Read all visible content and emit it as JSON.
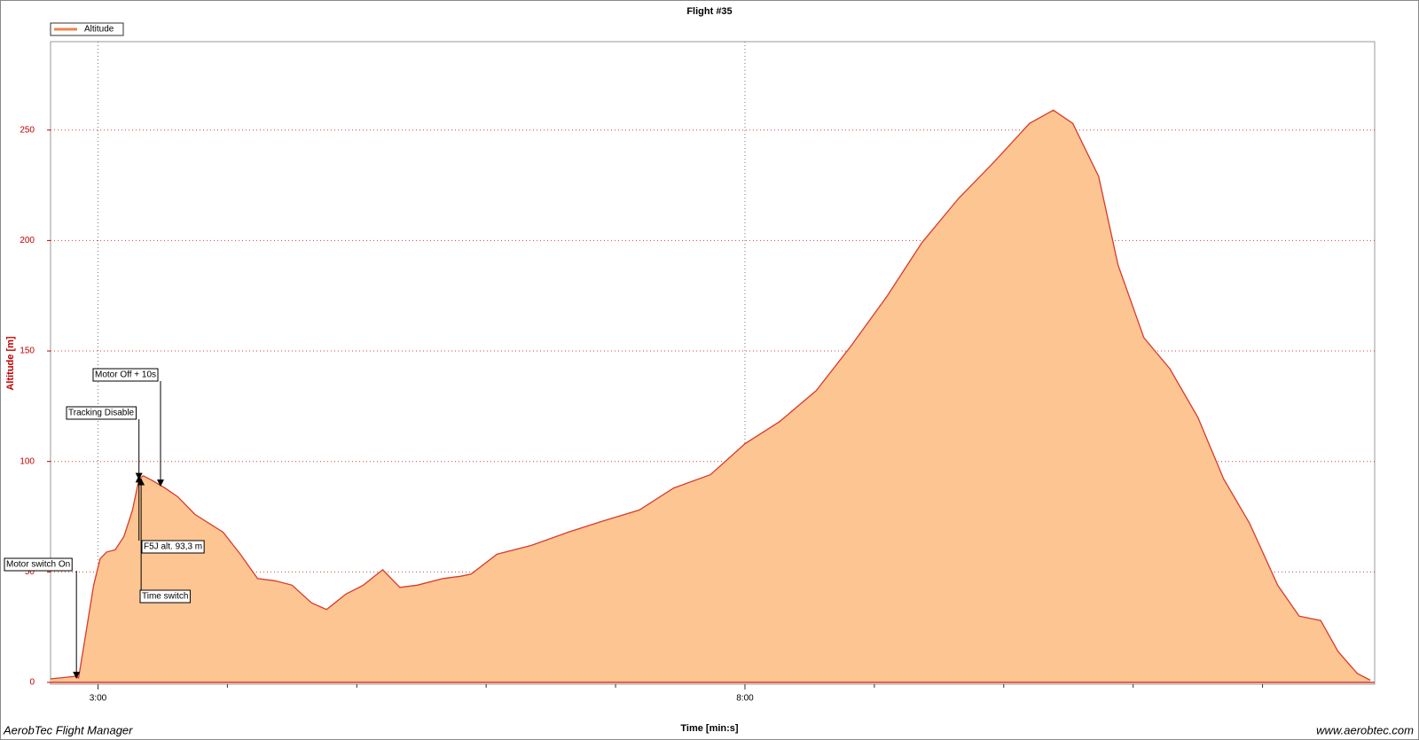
{
  "chart_data": {
    "type": "area",
    "title": "Flight #35",
    "x_label": "Time [min:s]",
    "y_label": "Altitude [m]",
    "footer": {
      "left": "AerobTec Flight Manager",
      "right": "www.aerobtec.com"
    },
    "xlim": [
      158,
      772
    ],
    "ylim": [
      0,
      290
    ],
    "xticks": [
      {
        "value": 180,
        "label": "3:00"
      },
      {
        "value": 480,
        "label": "8:00"
      }
    ],
    "xminorticks": [
      240,
      300,
      360,
      420,
      540,
      600,
      660,
      720
    ],
    "yticks": [
      0,
      50,
      100,
      150,
      200,
      250
    ],
    "grid": true,
    "legend": "top-left",
    "x": [
      158,
      170,
      171,
      174,
      178,
      181,
      184,
      188,
      192,
      196,
      199,
      201,
      205,
      211,
      217,
      225,
      238,
      246,
      254,
      262,
      270,
      279,
      286,
      295,
      303,
      312,
      320,
      328,
      340,
      348,
      353,
      365,
      381,
      398,
      414,
      431,
      447,
      464,
      480,
      496,
      513,
      529,
      546,
      562,
      579,
      595,
      612,
      623,
      632,
      644,
      653,
      665,
      677,
      690,
      702,
      714,
      727,
      737,
      747,
      755,
      764,
      770
    ],
    "series": [
      {
        "name": "Altitude",
        "color": "#d93a2b",
        "fill": "#fdc591",
        "values": [
          1.6,
          2.8,
          2,
          20,
          44,
          56,
          59,
          60,
          66,
          78,
          92,
          93.5,
          91.5,
          88,
          84,
          76,
          68,
          58,
          47,
          46,
          44,
          36,
          33,
          40,
          44,
          51,
          43,
          44,
          47,
          48,
          49,
          58,
          62,
          68,
          73,
          78,
          88,
          94,
          108,
          118,
          132,
          152,
          175,
          199,
          219,
          235,
          253,
          259,
          253,
          229,
          189,
          156,
          142,
          120,
          92,
          72,
          44,
          30,
          28,
          14,
          4,
          1
        ]
      }
    ],
    "annotations": [
      {
        "text": "Motor switch On",
        "x": 170,
        "y": 2
      },
      {
        "text": "Tracking Disable",
        "x": 199,
        "y": 92
      },
      {
        "text": "Motor Off + 10s",
        "x": 209,
        "y": 89
      },
      {
        "text": "F5J alt. 93,3 m",
        "x": 199,
        "y": 93.3
      },
      {
        "text": "Time switch",
        "x": 200,
        "y": 92
      }
    ]
  }
}
